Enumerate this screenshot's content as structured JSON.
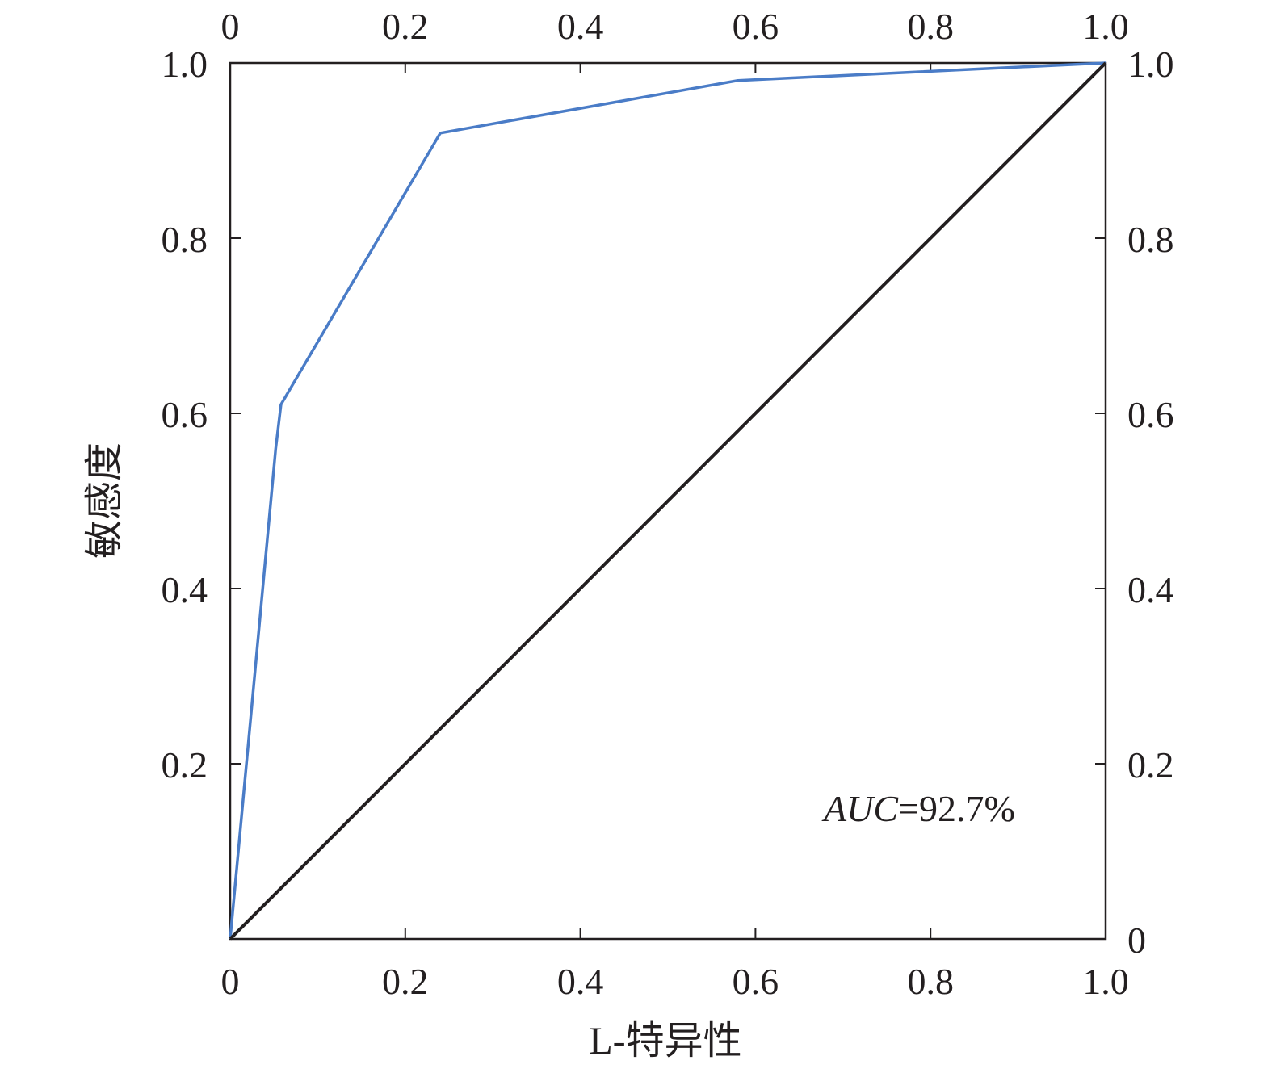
{
  "chart_data": {
    "type": "line",
    "title": "",
    "xlabel": "L-特异性",
    "ylabel": "敏感度",
    "xlim": [
      0,
      1
    ],
    "ylim": [
      0,
      1
    ],
    "x_ticks": [
      "0",
      "0.2",
      "0.4",
      "0.6",
      "0.8",
      "1.0"
    ],
    "y_ticks_left": [
      "",
      "0.2",
      "0.4",
      "0.6",
      "0.8",
      "1.0"
    ],
    "x_ticks_top": [
      "0",
      "0.2",
      "0.4",
      "0.6",
      "0.8",
      "1.0"
    ],
    "y_ticks_right": [
      "0",
      "0.2",
      "0.4",
      "0.6",
      "0.8",
      "1.0"
    ],
    "grid": false,
    "series": [
      {
        "color": "#4a7cc7",
        "x": [
          0,
          0.052,
          0.058,
          0.24,
          0.58,
          1.0
        ],
        "y": [
          0,
          0.56,
          0.61,
          0.92,
          0.98,
          1.0
        ]
      },
      {
        "color": "#231f20",
        "x": [
          0,
          1
        ],
        "y": [
          0,
          1
        ]
      }
    ],
    "annotations": [
      {
        "text_italic": "AUC",
        "text_rest": "=92.7%"
      }
    ]
  }
}
